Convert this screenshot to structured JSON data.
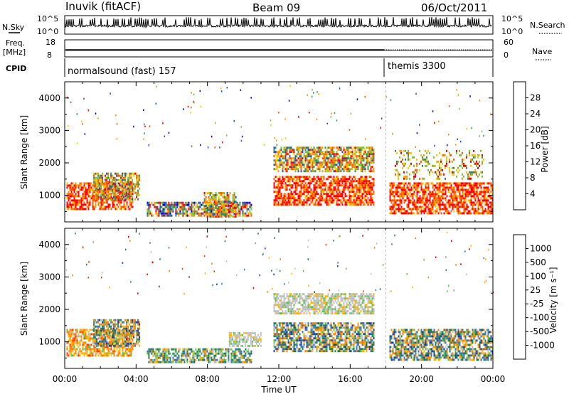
{
  "header": {
    "station": "Inuvik (fitACF)",
    "beam": "Beam 09",
    "date": "06/Oct/2011"
  },
  "top_panels": {
    "nsky_label": "N.Sky",
    "nsearch_label": "N.Search",
    "nsky_ticks": [
      "10^5",
      "10^0"
    ],
    "nsearch_ticks": [
      "10^5",
      "10^0"
    ],
    "freq_label": "Freq.",
    "freq_unit": "[MHz]",
    "freq_ticks": [
      "18",
      "8"
    ],
    "nave_label": "Nave",
    "nave_ticks": [
      "60",
      "0"
    ],
    "cpid_label": "CPID",
    "cpid_segments": [
      {
        "label": "normalsound (fast) 157",
        "start_hour": 0
      },
      {
        "label": "themis 3300",
        "start_hour": 18
      }
    ]
  },
  "chart_data": [
    {
      "type": "heatmap",
      "title": "",
      "xlabel": "",
      "ylabel": "Slant Range [km]",
      "xlim": [
        0,
        24
      ],
      "ylim": [
        180,
        4500
      ],
      "yticks": [
        "1000",
        "2000",
        "3000",
        "4000"
      ],
      "colorbar": {
        "label": "Power [dB]",
        "ticks": [
          "28",
          "24",
          "20",
          "16",
          "12",
          "8",
          "4"
        ],
        "colors": [
          "#ff0000",
          "#ff5a00",
          "#ff9600",
          "#f5c800",
          "#7fc040",
          "#3c8c5a",
          "#2850b4",
          "#0000e6"
        ]
      },
      "regions": [
        {
          "t": [
            0.1,
            3.8
          ],
          "r": [
            600,
            1400
          ],
          "level": "high"
        },
        {
          "t": [
            1.6,
            4.2
          ],
          "r": [
            900,
            1700
          ],
          "level": "mixed"
        },
        {
          "t": [
            4.6,
            10.5
          ],
          "r": [
            350,
            800
          ],
          "level": "mixed-low"
        },
        {
          "t": [
            7.8,
            9.6
          ],
          "r": [
            350,
            1100
          ],
          "level": "mixed"
        },
        {
          "t": [
            11.7,
            17.3
          ],
          "r": [
            700,
            1600
          ],
          "level": "high"
        },
        {
          "t": [
            11.7,
            17.3
          ],
          "r": [
            1750,
            2500
          ],
          "level": "mixed"
        },
        {
          "t": [
            18.2,
            24
          ],
          "r": [
            450,
            1400
          ],
          "level": "high"
        },
        {
          "t": [
            18.5,
            23.5
          ],
          "r": [
            1500,
            2400
          ],
          "level": "sparse"
        }
      ]
    },
    {
      "type": "heatmap",
      "title": "",
      "xlabel": "Time UT",
      "ylabel": "Slant Range [km]",
      "xlim": [
        0,
        24
      ],
      "ylim": [
        180,
        4500
      ],
      "yticks": [
        "1000",
        "2000",
        "3000",
        "4000"
      ],
      "xticks": [
        "00:00",
        "04:00",
        "08:00",
        "12:00",
        "16:00",
        "20:00",
        "00:00"
      ],
      "colorbar": {
        "label": "Velocity [m s⁻¹]",
        "ticks": [
          "1000",
          "500",
          "100",
          "25",
          "-25",
          "-100",
          "-500",
          "-1000"
        ],
        "colors": [
          "#1e3c9c",
          "#3c78b4",
          "#287850",
          "#60c050",
          "#c0c0c0",
          "#ffb400",
          "#ff8200",
          "#ff3c00",
          "#e60000"
        ]
      },
      "regions": [
        {
          "t": [
            0.1,
            3.8
          ],
          "r": [
            600,
            1400
          ],
          "level": "negative"
        },
        {
          "t": [
            1.6,
            4.2
          ],
          "r": [
            900,
            1700
          ],
          "level": "mixed"
        },
        {
          "t": [
            4.6,
            10.5
          ],
          "r": [
            350,
            800
          ],
          "level": "positive-low"
        },
        {
          "t": [
            9.2,
            11.0
          ],
          "r": [
            850,
            1300
          ],
          "level": "near-zero"
        },
        {
          "t": [
            11.7,
            17.3
          ],
          "r": [
            700,
            1600
          ],
          "level": "mixed"
        },
        {
          "t": [
            11.7,
            17.3
          ],
          "r": [
            1900,
            2500
          ],
          "level": "near-zero"
        },
        {
          "t": [
            18.2,
            24
          ],
          "r": [
            450,
            1400
          ],
          "level": "mixed"
        }
      ]
    }
  ]
}
